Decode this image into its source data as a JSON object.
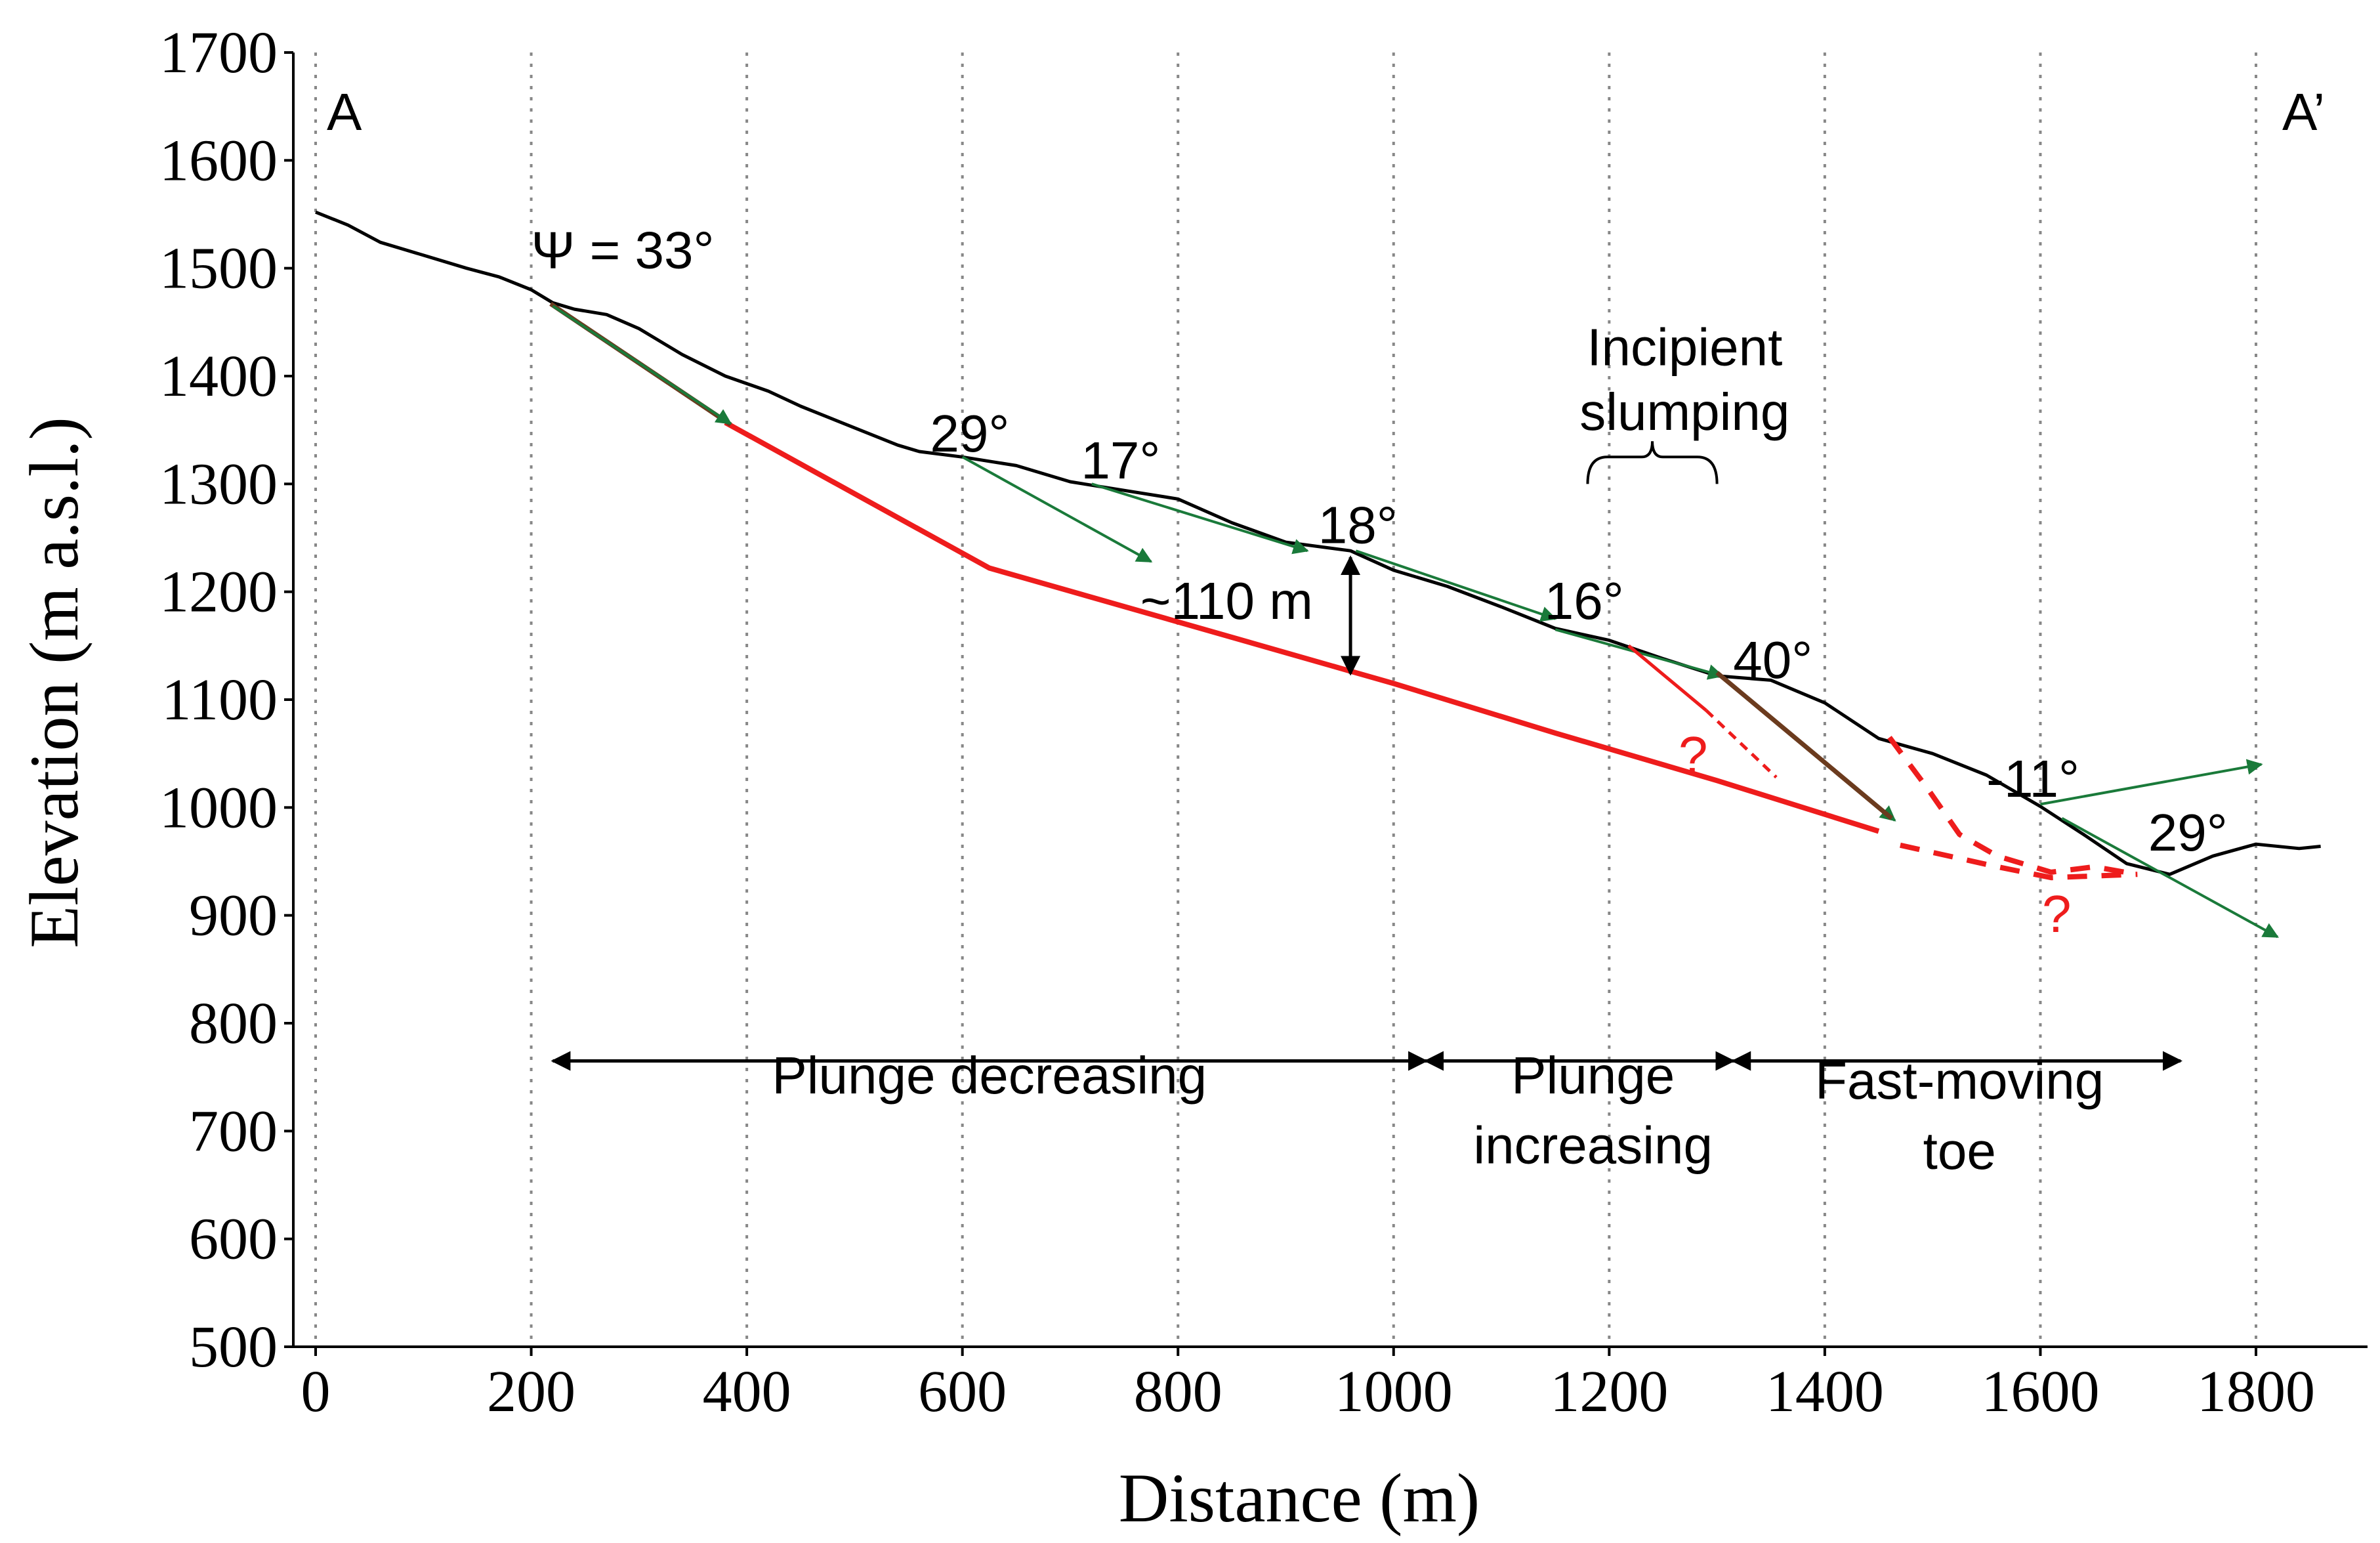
{
  "chart_data": {
    "type": "line",
    "title": "",
    "xlabel": "Distance (m)",
    "ylabel": "Elevation (m a.s.l.)",
    "xlim": [
      -20,
      1870
    ],
    "ylim": [
      500,
      1700
    ],
    "x_ticks": [
      0,
      200,
      400,
      600,
      800,
      1000,
      1200,
      1400,
      1600,
      1800
    ],
    "y_ticks": [
      500,
      600,
      700,
      800,
      900,
      1000,
      1100,
      1200,
      1300,
      1400,
      1500,
      1600,
      1700
    ],
    "grid": "vertical dotted lines at x ticks",
    "colors": {
      "topography": "#000000",
      "slip_surface": "#ee1c1c",
      "vector": "#1a7a3a",
      "wedge_plane": "#6b3b1e",
      "grid": "#888888"
    },
    "section_labels": {
      "start": "A",
      "end": "A’"
    },
    "series": [
      {
        "name": "Ground surface",
        "points": [
          [
            0,
            1552
          ],
          [
            30,
            1540
          ],
          [
            60,
            1524
          ],
          [
            100,
            1512
          ],
          [
            140,
            1500
          ],
          [
            170,
            1492
          ],
          [
            200,
            1480
          ],
          [
            220,
            1468
          ],
          [
            240,
            1462
          ],
          [
            270,
            1457
          ],
          [
            300,
            1444
          ],
          [
            340,
            1420
          ],
          [
            380,
            1400
          ],
          [
            420,
            1386
          ],
          [
            450,
            1372
          ],
          [
            500,
            1352
          ],
          [
            540,
            1336
          ],
          [
            560,
            1330
          ],
          [
            600,
            1325
          ],
          [
            650,
            1317
          ],
          [
            700,
            1302
          ],
          [
            750,
            1294
          ],
          [
            800,
            1286
          ],
          [
            850,
            1264
          ],
          [
            900,
            1246
          ],
          [
            960,
            1238
          ],
          [
            1000,
            1220
          ],
          [
            1050,
            1205
          ],
          [
            1100,
            1186
          ],
          [
            1150,
            1166
          ],
          [
            1200,
            1155
          ],
          [
            1250,
            1138
          ],
          [
            1300,
            1122
          ],
          [
            1350,
            1118
          ],
          [
            1400,
            1097
          ],
          [
            1450,
            1064
          ],
          [
            1500,
            1050
          ],
          [
            1550,
            1030
          ],
          [
            1600,
            1001
          ],
          [
            1640,
            975
          ],
          [
            1680,
            948
          ],
          [
            1720,
            938
          ],
          [
            1760,
            955
          ],
          [
            1800,
            966
          ],
          [
            1840,
            962
          ],
          [
            1860,
            964
          ]
        ]
      },
      {
        "name": "Basal slip surface",
        "points": [
          [
            380,
            1357
          ],
          [
            625,
            1222
          ],
          [
            1000,
            1115
          ],
          [
            1150,
            1069
          ],
          [
            1300,
            1025
          ],
          [
            1450,
            978
          ]
        ]
      },
      {
        "name": "Back scarp",
        "points": [
          [
            218,
            1467
          ],
          [
            385,
            1355
          ]
        ]
      },
      {
        "name": "Inferred toe rupture (dashed)",
        "points": [
          [
            1460,
            1065
          ],
          [
            1495,
            1018
          ],
          [
            1525,
            975
          ],
          [
            1560,
            955
          ],
          [
            1610,
            940
          ],
          [
            1650,
            945
          ],
          [
            1690,
            938
          ]
        ]
      },
      {
        "name": "Lower toe extension (dashed)",
        "points": [
          [
            1470,
            965
          ],
          [
            1560,
            945
          ],
          [
            1610,
            935
          ],
          [
            1690,
            938
          ]
        ]
      }
    ],
    "annotations": [
      {
        "text": "Ψ = 33°",
        "x": 200,
        "y": 1500
      },
      {
        "text": "29°",
        "x": 570,
        "y": 1330
      },
      {
        "text": "17°",
        "x": 710,
        "y": 1305
      },
      {
        "text": "18°",
        "x": 930,
        "y": 1245
      },
      {
        "text": "~110 m",
        "x": 765,
        "y": 1175
      },
      {
        "text": "16°",
        "x": 1140,
        "y": 1175
      },
      {
        "text": "40°",
        "x": 1315,
        "y": 1120
      },
      {
        "text": "-11°",
        "x": 1550,
        "y": 1010
      },
      {
        "text": "29°",
        "x": 1700,
        "y": 960
      },
      {
        "text": "Incipient",
        "x": 1270,
        "y": 1410
      },
      {
        "text": "slumping",
        "x": 1270,
        "y": 1350
      },
      {
        "text": "Plunge decreasing",
        "x": 625,
        "y": 735
      },
      {
        "text": "Plunge",
        "x": 1185,
        "y": 735
      },
      {
        "text": "increasing",
        "x": 1185,
        "y": 670
      },
      {
        "text": "Fast-moving",
        "x": 1525,
        "y": 730
      },
      {
        "text": "toe",
        "x": 1525,
        "y": 665
      }
    ],
    "question_marks": [
      "?",
      "?"
    ],
    "zones": [
      {
        "name": "Plunge decreasing",
        "x_start": 220,
        "x_end": 1030,
        "y": 765
      },
      {
        "name": "Plunge increasing",
        "x_start": 1030,
        "x_end": 1315,
        "y": 765
      },
      {
        "name": "Fast-moving toe",
        "x_start": 1315,
        "x_end": 1730,
        "y": 765
      }
    ],
    "displacement_vectors": [
      {
        "angle": "33°",
        "from": [
          220,
          1465
        ],
        "to": [
          385,
          1356
        ]
      },
      {
        "angle": "29°",
        "from": [
          600,
          1325
        ],
        "to": [
          775,
          1228
        ]
      },
      {
        "angle": "17°",
        "from": [
          720,
          1300
        ],
        "to": [
          920,
          1238
        ]
      },
      {
        "angle": "18°",
        "from": [
          965,
          1238
        ],
        "to": [
          1150,
          1175
        ]
      },
      {
        "angle": "16°",
        "from": [
          1150,
          1165
        ],
        "to": [
          1305,
          1122
        ]
      },
      {
        "angle": "40°",
        "from": [
          1300,
          1125
        ],
        "to": [
          1465,
          988
        ]
      },
      {
        "angle": "-11°",
        "from": [
          1600,
          1003
        ],
        "to": [
          1805,
          1040
        ]
      },
      {
        "angle": "29°",
        "from": [
          1620,
          990
        ],
        "to": [
          1820,
          880
        ]
      }
    ]
  }
}
